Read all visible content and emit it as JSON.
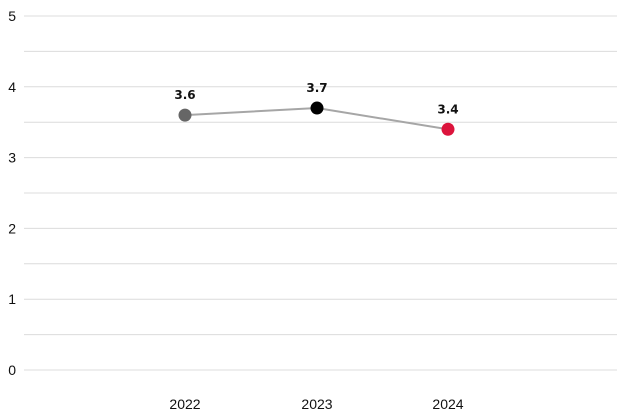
{
  "chart_data": {
    "type": "line",
    "categories": [
      "2022",
      "2023",
      "2024"
    ],
    "series": [
      {
        "values": [
          3.6,
          3.7,
          3.4
        ],
        "line_color": "#a6a6a6",
        "point_colors": [
          "#666666",
          "#000000",
          "#dc143c"
        ],
        "data_labels": [
          "3.6",
          "3.7",
          "3.4"
        ]
      }
    ],
    "y_ticks": [
      "0",
      "1",
      "2",
      "3",
      "4",
      "5"
    ],
    "ylim": [
      0,
      5
    ],
    "grid": true,
    "minor_gridlines": true,
    "legend": false,
    "title": "",
    "xlabel": "",
    "ylabel": ""
  }
}
